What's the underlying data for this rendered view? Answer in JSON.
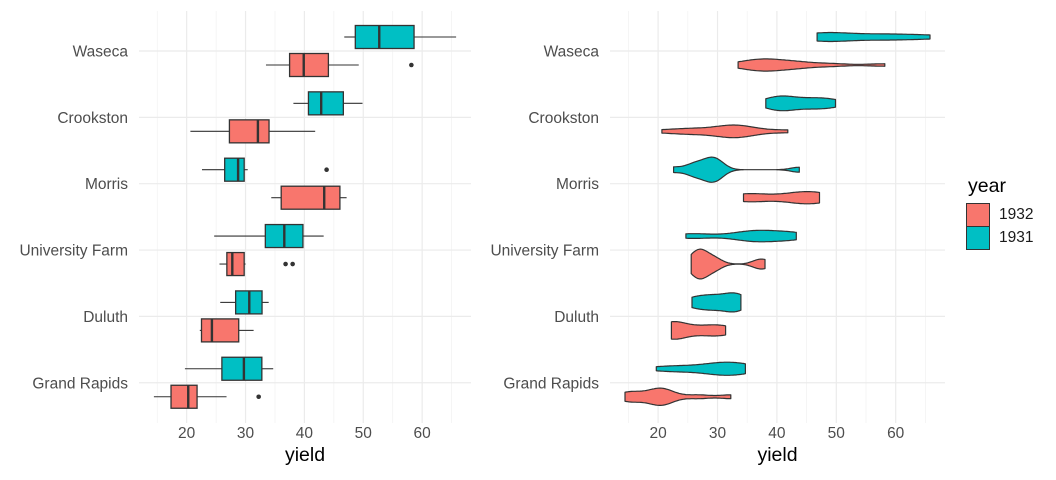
{
  "figure": {
    "background": "#FFFFFF",
    "legend": {
      "title": "year",
      "items": [
        {
          "label": "1932",
          "color": "#F8766D"
        },
        {
          "label": "1931",
          "color": "#00BFC4"
        }
      ]
    },
    "style": {
      "mark_outline_color": "#333333",
      "grid_major_color": "#EBEBEB",
      "grid_minor_color": "#F1F1F1",
      "axis_text_color": "#4D4D4D",
      "axis_title_color": "#000000"
    }
  },
  "chart_data": [
    {
      "type": "boxplot",
      "panel": "left",
      "orientation": "horizontal",
      "xlabel": "yield",
      "ylabel": "",
      "x_ticks": [
        20,
        30,
        40,
        50,
        60
      ],
      "x_minor_ticks": [
        15,
        25,
        35,
        45,
        55,
        65
      ],
      "xlim": [
        11.9,
        68.3
      ],
      "grid": true,
      "legend_position": "right",
      "categories": [
        "Waseca",
        "Crookston",
        "Morris",
        "University Farm",
        "Duluth",
        "Grand Rapids"
      ],
      "series": [
        {
          "name": "1931",
          "color": "#00BFC4",
          "dodge": "upper",
          "values": {
            "Waseca": [
              48.87,
              55.2,
              47.33,
              50.23,
              63.83,
              58.1,
              65.77,
              48.57,
              46.77,
              58.8
            ],
            "Crookston": [
              39.93,
              38.13,
              40.47,
              41.33,
              46.93,
              45.67,
              48.57,
              41.6,
              44.1,
              49.87
            ],
            "Morris": [
              27.43,
              28.77,
              25.77,
              26.13,
              43.77,
              28.7,
              30.37,
              29.87,
              22.6,
              29.47
            ],
            "University Farm": [
              27.0,
              43.07,
              35.13,
              39.9,
              36.57,
              43.27,
              36.6,
              32.77,
              24.67,
              39.3
            ],
            "Duluth": [
              28.97,
              29.67,
              25.7,
              26.3,
              33.93,
              33.6,
              28.1,
              32.0,
              33.07,
              31.6
            ],
            "Grand Rapids": [
              32.97,
              29.13,
              29.67,
              23.03,
              29.77,
              32.17,
              24.93,
              34.7,
              19.7,
              34.47
            ]
          }
        },
        {
          "name": "1932",
          "color": "#F8766D",
          "dodge": "lower",
          "values": {
            "Waseca": [
              33.47,
              37.73,
              38.5,
              37.4,
              49.23,
              42.2,
              44.7,
              36.03,
              41.27,
              58.17
            ],
            "Crookston": [
              32.97,
              26.17,
              20.63,
              32.07,
              41.83,
              34.33,
              30.53,
              25.23,
              32.13,
              35.9
            ],
            "Morris": [
              34.37,
              35.13,
              35.03,
              38.83,
              46.63,
              43.53,
              47.0,
              43.2,
              44.23,
              47.17
            ],
            "University Farm": [
              26.9,
              36.8,
              27.43,
              26.8,
              29.07,
              26.43,
              25.57,
              28.07,
              30.0,
              38.0
            ],
            "Duluth": [
              22.57,
              25.87,
              22.23,
              22.47,
              30.6,
              22.7,
              22.5,
              31.37,
              27.37,
              29.33
            ],
            "Grand Rapids": [
              22.13,
              14.43,
              16.63,
              32.23,
              20.63,
              19.47,
              19.9,
              26.77,
              15.23,
              20.67
            ]
          }
        }
      ]
    },
    {
      "type": "violin",
      "panel": "right",
      "orientation": "horizontal",
      "xlabel": "yield",
      "ylabel": "",
      "x_ticks": [
        20,
        30,
        40,
        50,
        60
      ],
      "x_minor_ticks": [
        15,
        25,
        35,
        45,
        55,
        65
      ],
      "xlim": [
        11.9,
        68.3
      ],
      "grid": true,
      "trim": true,
      "scale": "area",
      "legend_position": "right",
      "categories": [
        "Waseca",
        "Crookston",
        "Morris",
        "University Farm",
        "Duluth",
        "Grand Rapids"
      ],
      "series": [
        {
          "name": "1931",
          "color": "#00BFC4",
          "dodge": "upper",
          "values": {
            "Waseca": [
              48.87,
              55.2,
              47.33,
              50.23,
              63.83,
              58.1,
              65.77,
              48.57,
              46.77,
              58.8
            ],
            "Crookston": [
              39.93,
              38.13,
              40.47,
              41.33,
              46.93,
              45.67,
              48.57,
              41.6,
              44.1,
              49.87
            ],
            "Morris": [
              27.43,
              28.77,
              25.77,
              26.13,
              43.77,
              28.7,
              30.37,
              29.87,
              22.6,
              29.47
            ],
            "University Farm": [
              27.0,
              43.07,
              35.13,
              39.9,
              36.57,
              43.27,
              36.6,
              32.77,
              24.67,
              39.3
            ],
            "Duluth": [
              28.97,
              29.67,
              25.7,
              26.3,
              33.93,
              33.6,
              28.1,
              32.0,
              33.07,
              31.6
            ],
            "Grand Rapids": [
              32.97,
              29.13,
              29.67,
              23.03,
              29.77,
              32.17,
              24.93,
              34.7,
              19.7,
              34.47
            ]
          }
        },
        {
          "name": "1932",
          "color": "#F8766D",
          "dodge": "lower",
          "values": {
            "Waseca": [
              33.47,
              37.73,
              38.5,
              37.4,
              49.23,
              42.2,
              44.7,
              36.03,
              41.27,
              58.17
            ],
            "Crookston": [
              32.97,
              26.17,
              20.63,
              32.07,
              41.83,
              34.33,
              30.53,
              25.23,
              32.13,
              35.9
            ],
            "Morris": [
              34.37,
              35.13,
              35.03,
              38.83,
              46.63,
              43.53,
              47.0,
              43.2,
              44.23,
              47.17
            ],
            "University Farm": [
              26.9,
              36.8,
              27.43,
              26.8,
              29.07,
              26.43,
              25.57,
              28.07,
              30.0,
              38.0
            ],
            "Duluth": [
              22.57,
              25.87,
              22.23,
              22.47,
              30.6,
              22.7,
              22.5,
              31.37,
              27.37,
              29.33
            ],
            "Grand Rapids": [
              22.13,
              14.43,
              16.63,
              32.23,
              20.63,
              19.47,
              19.9,
              26.77,
              15.23,
              20.67
            ]
          }
        }
      ]
    }
  ]
}
